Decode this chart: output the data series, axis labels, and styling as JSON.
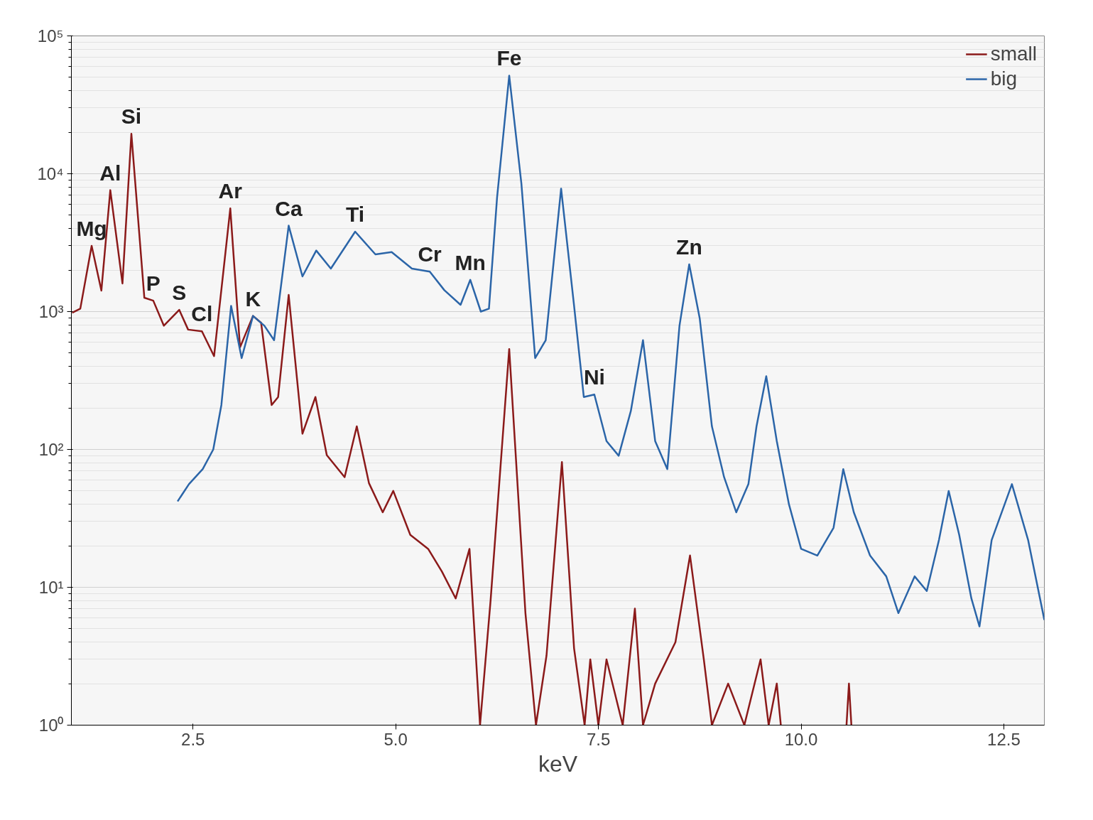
{
  "chart_data": {
    "type": "line",
    "xlabel": "keV",
    "log": "y",
    "grid": "y",
    "legend": "top right",
    "xlim": [
      1,
      13
    ],
    "ylim": [
      1,
      100000
    ],
    "xticks": [
      {
        "value": 2.5,
        "label": "2.5"
      },
      {
        "value": 5,
        "label": "5.0"
      },
      {
        "value": 7.5,
        "label": "7.5"
      },
      {
        "value": 10,
        "label": "10.0"
      },
      {
        "value": 12.5,
        "label": "12.5"
      }
    ],
    "yticks": [
      {
        "value": 1,
        "label": "10⁰"
      },
      {
        "value": 10,
        "label": "10¹"
      },
      {
        "value": 100,
        "label": "10²"
      },
      {
        "value": 1000,
        "label": "10³"
      },
      {
        "value": 10000,
        "label": "10⁴"
      },
      {
        "value": 100000,
        "label": "10⁵"
      }
    ],
    "series": [
      {
        "name": "small",
        "color": "#8b1a1a",
        "x": [
          1.01,
          1.11,
          1.25,
          1.37,
          1.48,
          1.63,
          1.74,
          1.9,
          2.01,
          2.14,
          2.33,
          2.44,
          2.61,
          2.76,
          2.96,
          3.08,
          3.24,
          3.34,
          3.47,
          3.55,
          3.68,
          3.85,
          4.01,
          4.15,
          4.37,
          4.52,
          4.67,
          4.84,
          4.97,
          5.18,
          5.4,
          5.57,
          5.74,
          5.91,
          6.04,
          6.17,
          6.4,
          6.6,
          6.73,
          6.86,
          7.05,
          7.2,
          7.33,
          7.4,
          7.5,
          7.6,
          7.8,
          7.95,
          8.05,
          8.2,
          8.45,
          8.63,
          8.8,
          8.9,
          9.1,
          9.3,
          9.5,
          9.6,
          9.7,
          9.75,
          10.2,
          10.56,
          10.59,
          10.62
        ],
        "values": [
          980,
          1050,
          3000,
          1420,
          7600,
          1600,
          19500,
          1260,
          1200,
          790,
          1030,
          740,
          720,
          475,
          5600,
          550,
          930,
          830,
          210,
          240,
          1320,
          130,
          240,
          91,
          63,
          147,
          57,
          35,
          50,
          24,
          19,
          13,
          8.3,
          19,
          1,
          8,
          535,
          6.5,
          1,
          3.2,
          81,
          3.6,
          1,
          3,
          1,
          3,
          1,
          7,
          1,
          2,
          4,
          17,
          3,
          1,
          2,
          1,
          3,
          1,
          2,
          1,
          null,
          1,
          2,
          1
        ]
      },
      {
        "name": "big",
        "color": "#2b65a8",
        "x": [
          2.31,
          2.45,
          2.62,
          2.75,
          2.85,
          2.97,
          3.1,
          3.24,
          3.38,
          3.5,
          3.68,
          3.85,
          4.02,
          4.2,
          4.5,
          4.75,
          4.95,
          5.2,
          5.42,
          5.6,
          5.8,
          5.92,
          6.05,
          6.15,
          6.25,
          6.4,
          6.55,
          6.72,
          6.85,
          7.04,
          7.2,
          7.32,
          7.45,
          7.6,
          7.75,
          7.9,
          8.05,
          8.2,
          8.35,
          8.5,
          8.62,
          8.75,
          8.9,
          9.05,
          9.2,
          9.35,
          9.45,
          9.57,
          9.7,
          9.85,
          10.0,
          10.2,
          10.4,
          10.52,
          10.65,
          10.85,
          11.05,
          11.2,
          11.4,
          11.55,
          11.7,
          11.82,
          11.95,
          12.1,
          12.2,
          12.35,
          12.6,
          12.8,
          13.0
        ],
        "values": [
          42,
          56,
          72,
          100,
          210,
          1100,
          460,
          930,
          790,
          620,
          4200,
          1800,
          2770,
          2050,
          3800,
          2600,
          2700,
          2050,
          1950,
          1430,
          1120,
          1700,
          1000,
          1050,
          6700,
          51500,
          8500,
          460,
          620,
          7800,
          1100,
          240,
          250,
          115,
          90,
          190,
          620,
          115,
          72,
          790,
          2200,
          890,
          147,
          63,
          35,
          56,
          147,
          340,
          115,
          40,
          19,
          17,
          27,
          72,
          35,
          17,
          12,
          6.5,
          12,
          9.4,
          22,
          50,
          24,
          8.3,
          5.2,
          22,
          56,
          22,
          5.8
        ]
      }
    ],
    "annotations": [
      {
        "text": "Mg",
        "x": 1.25,
        "y": 3000
      },
      {
        "text": "Al",
        "x": 1.48,
        "y": 7600
      },
      {
        "text": "Si",
        "x": 1.74,
        "y": 19500
      },
      {
        "text": "P",
        "x": 2.01,
        "y": 1200
      },
      {
        "text": "S",
        "x": 2.33,
        "y": 1030
      },
      {
        "text": "Cl",
        "x": 2.61,
        "y": 720
      },
      {
        "text": "Ar",
        "x": 2.96,
        "y": 5600
      },
      {
        "text": "K",
        "x": 3.24,
        "y": 930
      },
      {
        "text": "Ca",
        "x": 3.68,
        "y": 4200
      },
      {
        "text": "Ti",
        "x": 4.5,
        "y": 3800
      },
      {
        "text": "Cr",
        "x": 5.42,
        "y": 1950
      },
      {
        "text": "Mn",
        "x": 5.92,
        "y": 1700
      },
      {
        "text": "Fe",
        "x": 6.4,
        "y": 51500
      },
      {
        "text": "Ni",
        "x": 7.45,
        "y": 250
      },
      {
        "text": "Zn",
        "x": 8.62,
        "y": 2200
      }
    ]
  }
}
